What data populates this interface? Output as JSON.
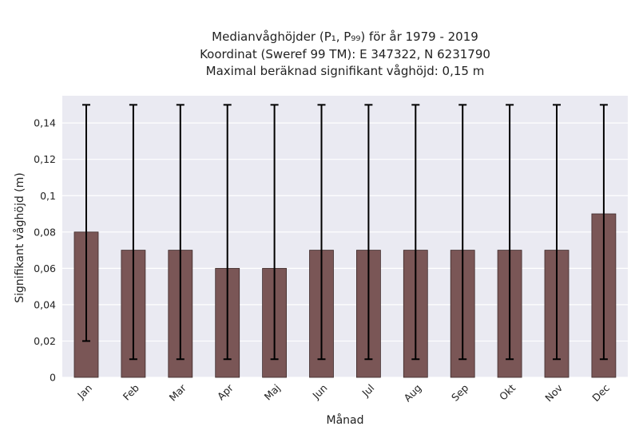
{
  "chart_data": {
    "type": "bar",
    "title_lines": [
      "Medianvåghöjder (P₁, P₉₉) för år 1979 - 2019",
      "Koordinat (Sweref 99 TM): E 347322, N 6231790",
      "Maximal beräknad signifikant våghöjd: 0,15 m"
    ],
    "xlabel": "Månad",
    "ylabel": "Signifikant våghöjd (m)",
    "categories": [
      "Jan",
      "Feb",
      "Mar",
      "Apr",
      "Maj",
      "Jun",
      "Jul",
      "Aug",
      "Sep",
      "Okt",
      "Nov",
      "Dec"
    ],
    "values": [
      0.08,
      0.07,
      0.07,
      0.06,
      0.06,
      0.07,
      0.07,
      0.07,
      0.07,
      0.07,
      0.07,
      0.09
    ],
    "error_low": [
      0.02,
      0.01,
      0.01,
      0.01,
      0.01,
      0.01,
      0.01,
      0.01,
      0.01,
      0.01,
      0.01,
      0.01
    ],
    "error_high": [
      0.15,
      0.15,
      0.15,
      0.15,
      0.15,
      0.15,
      0.15,
      0.15,
      0.15,
      0.15,
      0.15,
      0.15
    ],
    "ylim": [
      0,
      0.155
    ],
    "yticks": [
      0,
      0.02,
      0.04,
      0.06,
      0.08,
      0.1,
      0.12,
      0.14
    ],
    "ytick_labels": [
      "0",
      "0,02",
      "0,04",
      "0,06",
      "0,08",
      "0,1",
      "0,12",
      "0,14"
    ],
    "grid": true,
    "colors": {
      "bar": "#7a5656",
      "bar_edge": "#3d2a2a",
      "error_bar": "#000000",
      "plot_background": "#eaeaf2",
      "grid": "#ffffff"
    }
  }
}
